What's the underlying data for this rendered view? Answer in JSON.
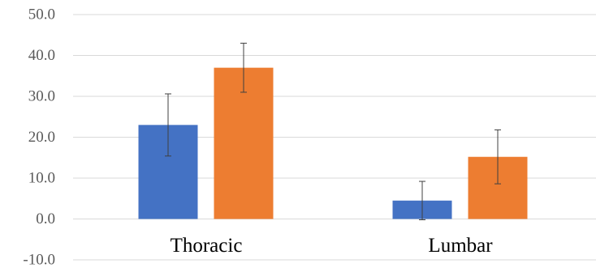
{
  "chart_data": {
    "type": "bar",
    "categories": [
      "Thoracic",
      "Lumbar"
    ],
    "series": [
      {
        "values": [
          23.0,
          4.5
        ],
        "errors": [
          7.6,
          4.7
        ],
        "color": "#4472C4"
      },
      {
        "values": [
          37.0,
          15.2
        ],
        "errors": [
          6.0,
          6.6
        ],
        "color": "#ED7D31"
      }
    ],
    "ylim": [
      -10,
      50
    ],
    "yticks": [
      50,
      40,
      30,
      20,
      10,
      0,
      -10
    ],
    "ytick_labels": [
      "50.0",
      "40.0",
      "30.0",
      "20.0",
      "10.0",
      "0.0",
      "-10.0"
    ],
    "grid": true,
    "gridline_color": "#D9D9D9",
    "errorbar_color": "#404040",
    "title": "",
    "xlabel": "",
    "ylabel": ""
  }
}
